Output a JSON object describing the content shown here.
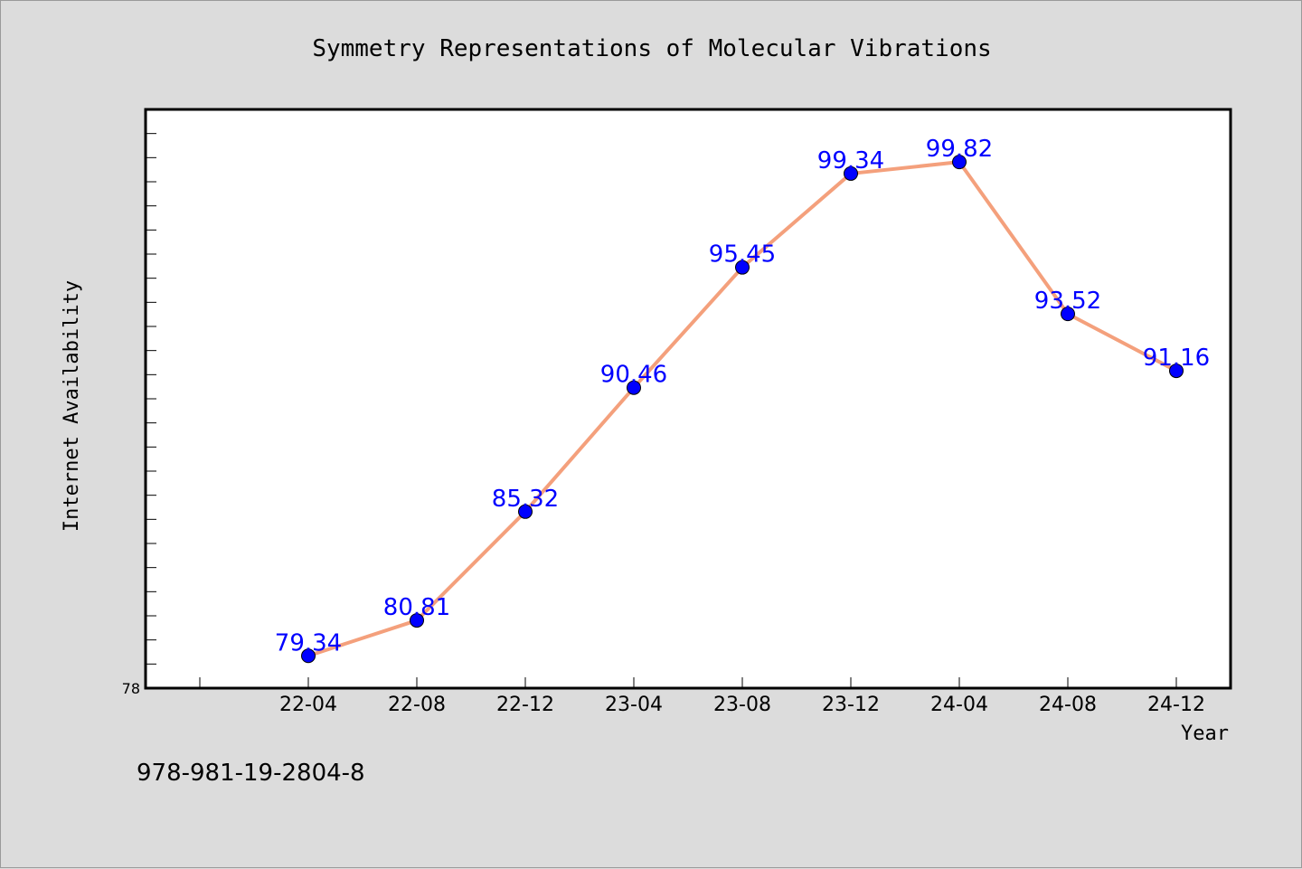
{
  "chart_data": {
    "type": "line",
    "title": "Symmetry Representations of Molecular Vibrations",
    "xlabel": "Year",
    "ylabel": "Internet Availability",
    "categories": [
      "22-04",
      "22-08",
      "22-12",
      "23-04",
      "23-08",
      "23-12",
      "24-04",
      "24-08",
      "24-12"
    ],
    "series": [
      {
        "values": [
          79.34,
          80.81,
          85.32,
          90.46,
          95.45,
          99.34,
          99.82,
          93.52,
          91.16
        ]
      }
    ],
    "data_labels": [
      "79.34",
      "80.81",
      "85.32",
      "90.46",
      "95.45",
      "99.34",
      "99.82",
      "93.52",
      "91.16"
    ],
    "ylim": [
      78,
      102
    ],
    "ytick_labels": [
      "78"
    ],
    "y_minor_tick_step": 1,
    "grid": false,
    "colors": {
      "line": "#f4a07c",
      "marker": "#0000ff",
      "data_label": "#0000ff",
      "plot_background": "#ffffff",
      "figure_background": "#dcdcdc"
    }
  },
  "footer": {
    "isbn": "978-981-19-2804-8"
  }
}
